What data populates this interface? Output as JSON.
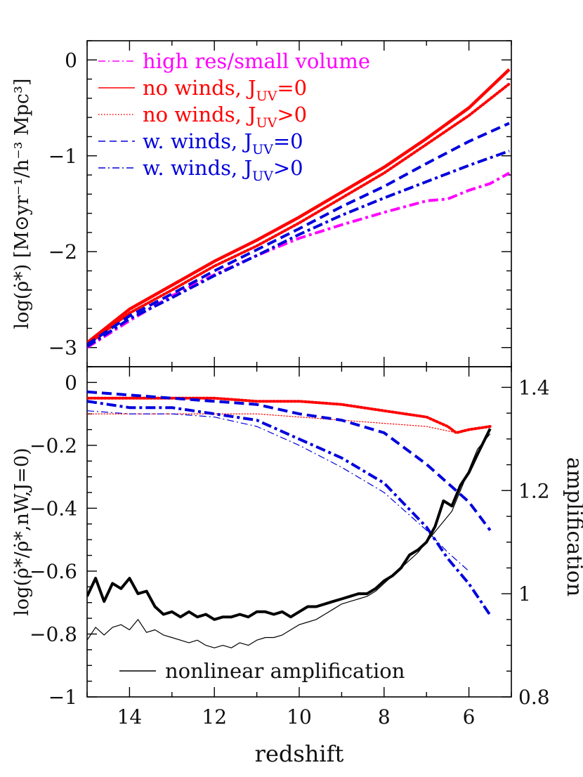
{
  "chart_data": [
    {
      "type": "line",
      "panel": "top",
      "ylabel": "log(ρ̇*)  [M⊙yr⁻¹/h⁻³ Mpc³]",
      "xlim": [
        15,
        5
      ],
      "ylim": [
        -3.2,
        0.2
      ],
      "xticks": [
        14,
        12,
        10,
        8,
        6
      ],
      "yticks": [
        0,
        -1,
        -2,
        -3
      ],
      "yticklabels": [
        "0",
        "−1",
        "−2",
        "−3"
      ],
      "legend_position": "top-left",
      "series": [
        {
          "name": "high res/small volume",
          "color": "#ff00ff",
          "style": "dashdot",
          "x": [
            15,
            14,
            13,
            12,
            11,
            10,
            9,
            8,
            7,
            6.5,
            6,
            5.5,
            5.05
          ],
          "y": [
            -3.0,
            -2.72,
            -2.46,
            -2.24,
            -2.04,
            -1.86,
            -1.72,
            -1.59,
            -1.47,
            -1.45,
            -1.36,
            -1.29,
            -1.18
          ]
        },
        {
          "name": "no winds, J_UV=0",
          "color": "#ff0000",
          "style": "solid",
          "x": [
            15,
            14,
            13,
            12,
            11,
            10,
            9,
            8,
            7,
            6,
            5.05
          ],
          "y": [
            -2.95,
            -2.6,
            -2.35,
            -2.1,
            -1.88,
            -1.64,
            -1.38,
            -1.12,
            -0.82,
            -0.5,
            -0.1
          ]
        },
        {
          "name": "no winds, J_UV>0",
          "color": "#ff0000",
          "style": "dotted",
          "x": [
            15,
            14,
            13,
            12,
            11,
            10,
            9,
            8,
            7,
            6,
            5.05
          ],
          "y": [
            -2.97,
            -2.64,
            -2.4,
            -2.15,
            -1.94,
            -1.7,
            -1.44,
            -1.18,
            -0.88,
            -0.58,
            -0.25
          ]
        },
        {
          "name": "w. winds, J_UV=0",
          "color": "#0000dd",
          "style": "dashed",
          "x": [
            15,
            14,
            13,
            12,
            11,
            10,
            9,
            8,
            7,
            6,
            5.05
          ],
          "y": [
            -2.97,
            -2.67,
            -2.44,
            -2.2,
            -1.98,
            -1.76,
            -1.53,
            -1.32,
            -1.08,
            -0.85,
            -0.66
          ]
        },
        {
          "name": "w. winds, J_UV>0",
          "color": "#0000dd",
          "style": "dashdot",
          "x": [
            15,
            14,
            13,
            12,
            11,
            10,
            9,
            8,
            7,
            6,
            5.05
          ],
          "y": [
            -2.99,
            -2.7,
            -2.48,
            -2.25,
            -2.04,
            -1.82,
            -1.62,
            -1.44,
            -1.27,
            -1.1,
            -0.95
          ]
        }
      ],
      "legend": [
        {
          "label": "high res/small volume",
          "color": "#ff00ff",
          "style": "dashdot"
        },
        {
          "label": "no winds, J",
          "sub": "UV",
          "tail": "=0",
          "color": "#ff0000",
          "style": "solid"
        },
        {
          "label": "no winds, J",
          "sub": "UV",
          "tail": ">0",
          "color": "#ff0000",
          "style": "dotted"
        },
        {
          "label": "w. winds, J",
          "sub": "UV",
          "tail": "=0",
          "color": "#0000dd",
          "style": "dashed"
        },
        {
          "label": "w. winds, J",
          "sub": "UV",
          "tail": ">0",
          "color": "#0000dd",
          "style": "dashdot"
        }
      ]
    },
    {
      "type": "line",
      "panel": "bottom",
      "xlabel": "redshift",
      "ylabel": "log(ρ̇*/ρ̇*,nW,J=0)",
      "y2label": "amplification",
      "xlim": [
        15,
        5
      ],
      "ylim": [
        -1,
        0.05
      ],
      "y2lim": [
        0.8,
        1.44
      ],
      "xticks": [
        14,
        12,
        10,
        8,
        6
      ],
      "yticks": [
        0,
        -0.2,
        -0.4,
        -0.6,
        -0.8,
        -1
      ],
      "yticklabels": [
        "0",
        "−0.2",
        "−0.4",
        "−0.6",
        "−0.8",
        "−1"
      ],
      "y2ticks": [
        1.4,
        1.2,
        1,
        0.8
      ],
      "y2ticklabels": [
        "1.4",
        "1.2",
        "1",
        "0.8"
      ],
      "legend": [
        {
          "label": "nonlinear amplification",
          "color": "#000000",
          "style": "solid"
        }
      ],
      "series": [
        {
          "name": "no winds, J_UV>0 ratio",
          "color": "#ff0000",
          "style": "dotted",
          "width": 4,
          "x": [
            15,
            14,
            13,
            12,
            11,
            10,
            9,
            8,
            7,
            6.5,
            6.3,
            6,
            5.5
          ],
          "y": [
            -0.05,
            -0.05,
            -0.05,
            -0.05,
            -0.06,
            -0.06,
            -0.07,
            -0.09,
            -0.11,
            -0.14,
            -0.16,
            -0.15,
            -0.14
          ]
        },
        {
          "name": "no winds, J_UV>0 ratio (high res)",
          "color": "#ff0000",
          "style": "dotted",
          "width": 1.2,
          "x": [
            15,
            14,
            13,
            12,
            11,
            10,
            9,
            8,
            7,
            6.3,
            6,
            5.5
          ],
          "y": [
            -0.1,
            -0.1,
            -0.1,
            -0.1,
            -0.1,
            -0.11,
            -0.12,
            -0.13,
            -0.14,
            -0.16,
            -0.15,
            -0.14
          ]
        },
        {
          "name": "w. winds, J_UV=0 ratio",
          "color": "#0000dd",
          "style": "dashed",
          "width": 4,
          "x": [
            15,
            14,
            13,
            12,
            11,
            10,
            9,
            8,
            7,
            6,
            5.5
          ],
          "y": [
            -0.03,
            -0.04,
            -0.05,
            -0.06,
            -0.07,
            -0.1,
            -0.12,
            -0.16,
            -0.26,
            -0.38,
            -0.47
          ]
        },
        {
          "name": "w. winds, J_UV>0 ratio",
          "color": "#0000dd",
          "style": "dashdot",
          "width": 4,
          "x": [
            15,
            14,
            13,
            12,
            11,
            10,
            9,
            8,
            7,
            6.5,
            6,
            5.5
          ],
          "y": [
            -0.06,
            -0.08,
            -0.08,
            -0.1,
            -0.12,
            -0.18,
            -0.24,
            -0.32,
            -0.46,
            -0.56,
            -0.64,
            -0.74
          ]
        },
        {
          "name": "w. winds, J_UV>0 ratio (high res)",
          "color": "#0000dd",
          "style": "dashdot",
          "width": 1.2,
          "x": [
            15,
            14,
            13,
            12,
            11,
            10,
            9,
            8,
            7,
            6.5,
            6
          ],
          "y": [
            -0.09,
            -0.1,
            -0.1,
            -0.11,
            -0.14,
            -0.2,
            -0.27,
            -0.35,
            -0.47,
            -0.54,
            -0.6
          ]
        },
        {
          "name": "nonlinear amplification",
          "color": "#000000",
          "style": "solid",
          "width": 4,
          "axis": "y2",
          "x": [
            15,
            14.8,
            14.6,
            14.4,
            14.2,
            14,
            13.8,
            13.6,
            13.4,
            13.2,
            13,
            12.8,
            12.6,
            12.4,
            12.2,
            12,
            11.8,
            11.6,
            11.4,
            11.2,
            11,
            10.8,
            10.6,
            10.4,
            10.2,
            10,
            9.8,
            9.6,
            9.4,
            9.2,
            9,
            8.8,
            8.6,
            8.4,
            8.2,
            8,
            7.8,
            7.6,
            7.4,
            7.2,
            7,
            6.8,
            6.6,
            6.4,
            6.2,
            6,
            5.8,
            5.5
          ],
          "y": [
            0.995,
            1.03,
            0.985,
            1.02,
            1.01,
            1.03,
            1.0,
            1.005,
            0.975,
            0.96,
            0.965,
            0.955,
            0.965,
            0.955,
            0.96,
            0.95,
            0.955,
            0.955,
            0.96,
            0.955,
            0.965,
            0.965,
            0.96,
            0.965,
            0.955,
            0.965,
            0.975,
            0.975,
            0.98,
            0.985,
            0.99,
            0.995,
            1.0,
            1.0,
            1.01,
            1.025,
            1.035,
            1.05,
            1.075,
            1.085,
            1.1,
            1.13,
            1.18,
            1.17,
            1.21,
            1.235,
            1.27,
            1.32
          ]
        },
        {
          "name": "nonlinear amplification (high res)",
          "color": "#000000",
          "style": "solid",
          "width": 1.2,
          "axis": "y2",
          "x": [
            15,
            14.8,
            14.6,
            14.4,
            14.2,
            14,
            13.8,
            13.6,
            13.4,
            13.2,
            13,
            12.8,
            12.6,
            12.4,
            12.2,
            12,
            11.8,
            11.6,
            11.4,
            11.2,
            11,
            10.8,
            10.6,
            10.4,
            10.2,
            10,
            9.8,
            9.6,
            9.4,
            9.2,
            9,
            8.8,
            8.6,
            8.4,
            8.2,
            8,
            7.8,
            7.6,
            7.4,
            7.2,
            7,
            6.8,
            6.6,
            6.4,
            6.2,
            6,
            5.8,
            5.5
          ],
          "y": [
            0.91,
            0.935,
            0.92,
            0.935,
            0.94,
            0.93,
            0.95,
            0.925,
            0.93,
            0.92,
            0.915,
            0.91,
            0.905,
            0.91,
            0.9,
            0.895,
            0.9,
            0.895,
            0.905,
            0.9,
            0.91,
            0.915,
            0.915,
            0.92,
            0.93,
            0.94,
            0.945,
            0.95,
            0.96,
            0.97,
            0.98,
            0.985,
            0.99,
            0.995,
            1.005,
            1.02,
            1.035,
            1.05,
            1.065,
            1.08,
            1.1,
            1.12,
            1.14,
            1.16,
            1.2,
            1.24,
            1.28,
            1.31
          ]
        }
      ]
    }
  ]
}
